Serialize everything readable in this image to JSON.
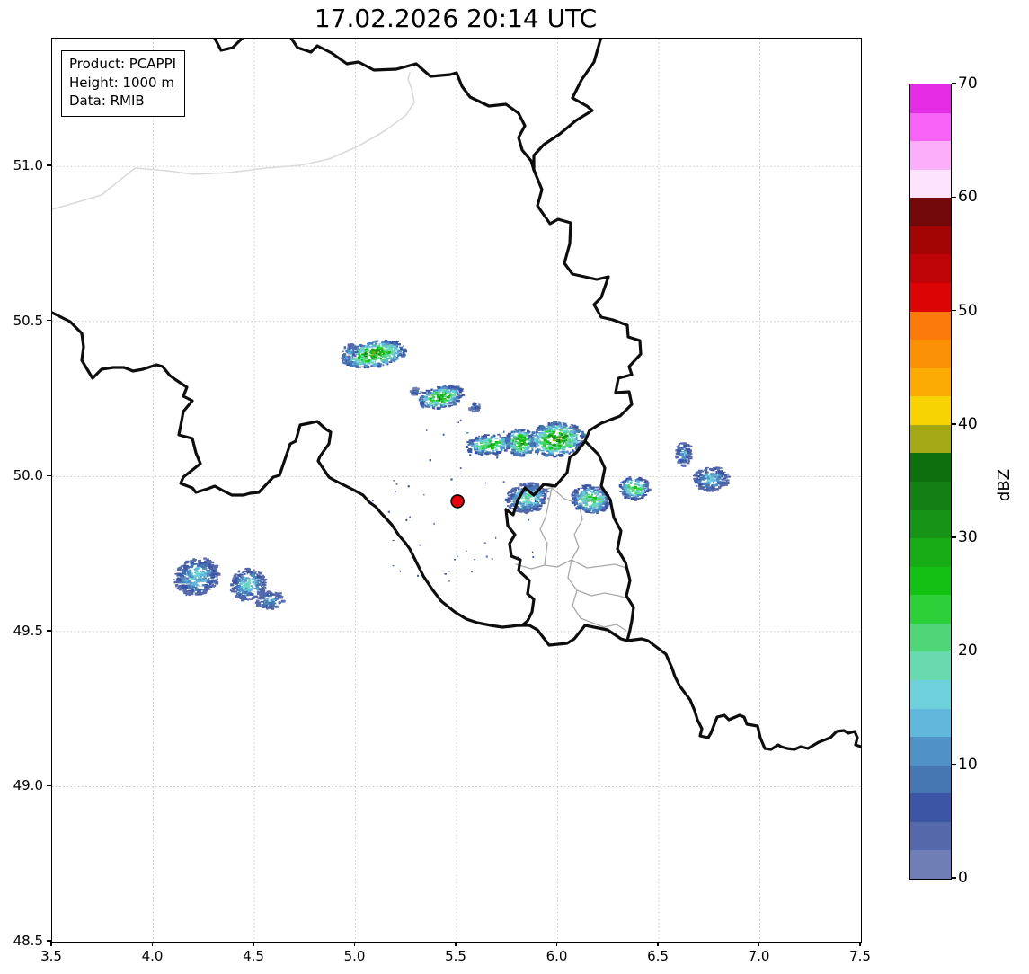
{
  "title": "17.02.2026 20:14 UTC",
  "info_box": {
    "line1": "Product: PCAPPI",
    "line2": "Height: 1000 m",
    "line3": "Data: RMIB"
  },
  "axes": {
    "x_tick_labels": [
      "3.5",
      "4.0",
      "4.5",
      "5.0",
      "5.5",
      "6.0",
      "6.5",
      "7.0",
      "7.5"
    ],
    "x_tick_values": [
      3.5,
      4.0,
      4.5,
      5.0,
      5.5,
      6.0,
      6.5,
      7.0,
      7.5
    ],
    "y_tick_labels": [
      "51.0",
      "50.5",
      "50.0",
      "49.5",
      "49.0",
      "48.5"
    ],
    "y_tick_values": [
      51.0,
      50.5,
      50.0,
      49.5,
      49.0,
      48.5
    ]
  },
  "colorbar": {
    "label": "dBZ",
    "tick_labels": [
      "0",
      "10",
      "20",
      "30",
      "40",
      "50",
      "60",
      "70"
    ],
    "tick_values": [
      0,
      10,
      20,
      30,
      40,
      50,
      60,
      70
    ],
    "min": 0,
    "max": 70,
    "band_step": 2.5,
    "band_colors": [
      "#6f7eb5",
      "#5569aa",
      "#3c55a5",
      "#4677b2",
      "#5092c5",
      "#62b8dc",
      "#6fd1dc",
      "#69d9b0",
      "#50d678",
      "#2ed03a",
      "#13c113",
      "#16ad16",
      "#179317",
      "#147f14",
      "#0d6f0d",
      "#a3a814",
      "#f8d303",
      "#fbab03",
      "#fb9205",
      "#fb7a09",
      "#dd0405",
      "#bf0408",
      "#a30505",
      "#720808",
      "#fde3fd",
      "#fbaffb",
      "#f763f7",
      "#e32ce3"
    ]
  },
  "radar_marker": {
    "lon": 5.505,
    "lat": 49.92,
    "color": "#e8000b"
  },
  "map_colors": {
    "border": "#0d0d0d",
    "district": "#a8a8a8",
    "region": "#dadada",
    "grid": "#c9c9c9"
  },
  "chart_data": {
    "type": "heatmap",
    "title": "17.02.2026 20:14 UTC",
    "xlabel": "",
    "ylabel": "",
    "x_range": [
      3.5,
      7.5
    ],
    "y_range": [
      48.5,
      51.412
    ],
    "x_tick_step": 0.5,
    "y_tick_step": 0.5,
    "grid": true,
    "legend_position": "right-colorbar",
    "colorbar_label": "dBZ",
    "colorbar_range": [
      0,
      70
    ],
    "colorbar_tick_step": 10,
    "product": "PCAPPI",
    "height_m": 1000,
    "source": "RMIB",
    "timestamp_utc": "17.02.2026 20:14",
    "radar_site": {
      "lon": 5.505,
      "lat": 49.92
    },
    "echo_cells": [
      {
        "lon": 5.091,
        "lat": 50.395,
        "dlon": 0.29,
        "dlat": 0.075,
        "angle": -8,
        "max_dbz": 33
      },
      {
        "lon": 4.975,
        "lat": 50.405,
        "dlon": 0.06,
        "dlat": 0.04,
        "angle": 0,
        "max_dbz": 14
      },
      {
        "lon": 5.424,
        "lat": 50.256,
        "dlon": 0.2,
        "dlat": 0.065,
        "angle": -12,
        "max_dbz": 30
      },
      {
        "lon": 5.59,
        "lat": 50.225,
        "dlon": 0.055,
        "dlat": 0.028,
        "angle": 0,
        "max_dbz": 10
      },
      {
        "lon": 5.3,
        "lat": 50.272,
        "dlon": 0.05,
        "dlat": 0.025,
        "angle": 0,
        "max_dbz": 9
      },
      {
        "lon": 5.669,
        "lat": 50.103,
        "dlon": 0.22,
        "dlat": 0.058,
        "angle": -5,
        "max_dbz": 27
      },
      {
        "lon": 5.816,
        "lat": 50.111,
        "dlon": 0.13,
        "dlat": 0.078,
        "angle": 0,
        "max_dbz": 33
      },
      {
        "lon": 5.993,
        "lat": 50.12,
        "dlon": 0.245,
        "dlat": 0.1,
        "angle": -5,
        "max_dbz": 34
      },
      {
        "lon": 5.851,
        "lat": 49.931,
        "dlon": 0.19,
        "dlat": 0.085,
        "angle": -10,
        "max_dbz": 20
      },
      {
        "lon": 6.167,
        "lat": 49.926,
        "dlon": 0.175,
        "dlat": 0.085,
        "angle": 5,
        "max_dbz": 24
      },
      {
        "lon": 6.38,
        "lat": 49.963,
        "dlon": 0.13,
        "dlat": 0.068,
        "angle": 0,
        "max_dbz": 26
      },
      {
        "lon": 6.624,
        "lat": 50.073,
        "dlon": 0.07,
        "dlat": 0.068,
        "angle": 0,
        "max_dbz": 14
      },
      {
        "lon": 6.758,
        "lat": 49.992,
        "dlon": 0.16,
        "dlat": 0.068,
        "angle": -5,
        "max_dbz": 16
      },
      {
        "lon": 4.216,
        "lat": 49.677,
        "dlon": 0.2,
        "dlat": 0.105,
        "angle": -18,
        "max_dbz": 17
      },
      {
        "lon": 4.469,
        "lat": 49.651,
        "dlon": 0.155,
        "dlat": 0.092,
        "angle": -25,
        "max_dbz": 18
      },
      {
        "lon": 4.576,
        "lat": 49.601,
        "dlon": 0.12,
        "dlat": 0.052,
        "angle": -15,
        "max_dbz": 14
      }
    ],
    "speckle_field": {
      "lon": 5.505,
      "lat": 49.92,
      "rlon": 0.46,
      "rlat": 0.3,
      "count": 52,
      "max_dbz": 8
    }
  }
}
